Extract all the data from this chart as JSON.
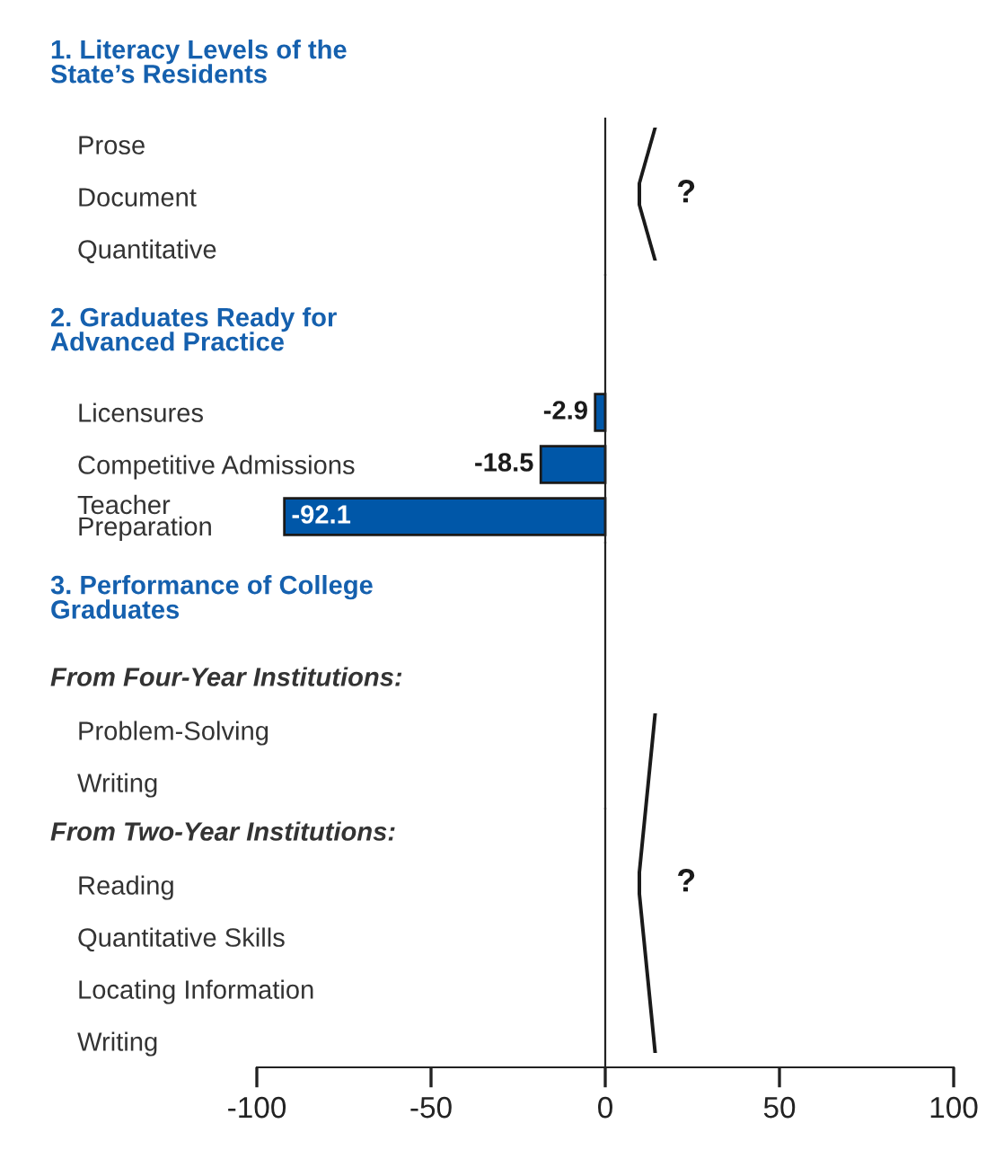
{
  "chart_data": [
    {
      "type": "bar",
      "orientation": "horizontal",
      "title": "1. Literacy Levels of the\nState’s Residents",
      "categories": [
        "Prose",
        "Document",
        "Quantitative"
      ],
      "values": [
        null,
        null,
        null
      ],
      "color": "#0057a8",
      "xlim": [
        -100,
        100
      ],
      "xticks": [
        -100,
        -50,
        0,
        50,
        100
      ],
      "tick_labels": "y",
      "legend": false,
      "data_labels": true,
      "annotations": [
        "?"
      ]
    },
    {
      "type": "bar",
      "orientation": "horizontal",
      "title": "2. Graduates Ready for\nAdvanced Practice",
      "categories": [
        "Licensures",
        "Competitive Admissions",
        "Teacher\nPreparation"
      ],
      "values": [
        -2.9,
        -18.5,
        -92.1
      ],
      "color": "#0057a8",
      "xlim": [
        -100,
        100
      ],
      "xticks": [
        -100,
        -50,
        0,
        50,
        100
      ],
      "tick_labels": "y",
      "legend": false,
      "data_labels": true
    },
    {
      "type": "bar",
      "orientation": "horizontal",
      "title": "3. Performance of College\nGraduates",
      "subtitle": "From Four-Year Institutions:",
      "categories": [
        "Problem-Solving",
        "Writing"
      ],
      "values": [
        null,
        null
      ],
      "color": "#0057a8",
      "xlim": [
        -100,
        100
      ],
      "xticks": [
        -100,
        -50,
        0,
        50,
        100
      ],
      "tick_labels": "y",
      "legend": false,
      "data_labels": true
    },
    {
      "type": "bar",
      "orientation": "horizontal",
      "subtitle": "From Two-Year Institutions:",
      "categories": [
        "Reading",
        "Quantitative Skills",
        "Locating Information",
        "Writing"
      ],
      "values": [
        null,
        null,
        null,
        null
      ],
      "color": "#0057a8",
      "xlim": [
        -100,
        100
      ],
      "xticks": [
        -100,
        -50,
        0,
        50,
        100
      ],
      "legend": false,
      "data_labels": true,
      "annotations": [
        "?"
      ]
    }
  ]
}
